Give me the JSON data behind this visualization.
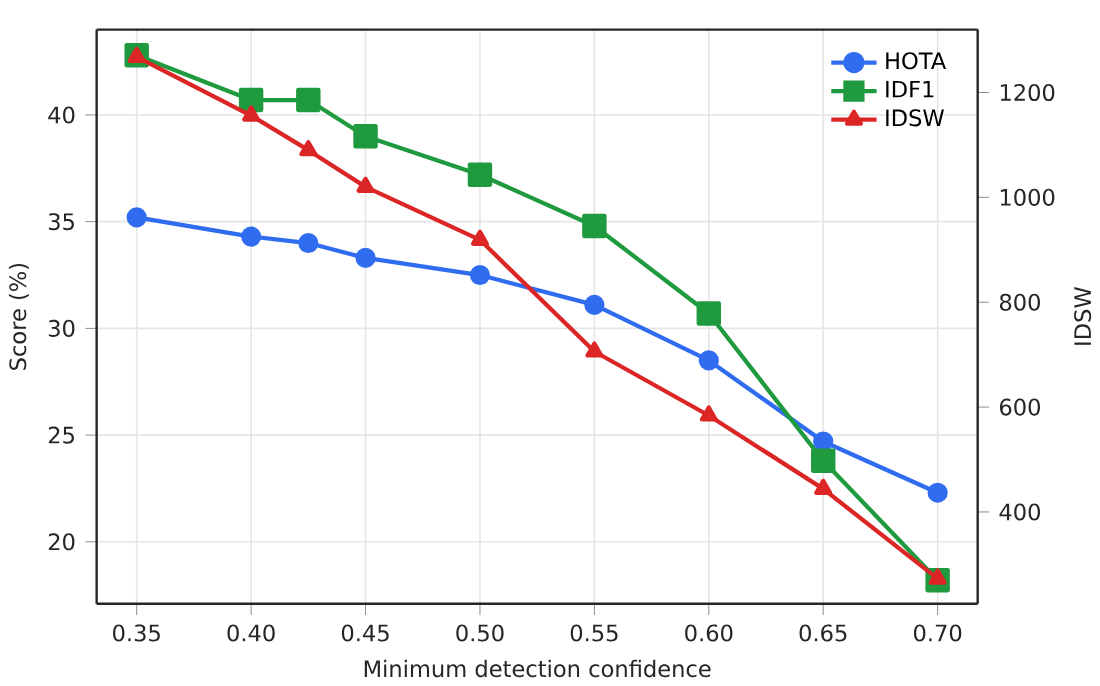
{
  "chart_data": {
    "type": "line",
    "xlabel": "Minimum detection confidence",
    "ylabel": "Score (%)",
    "y2label": "IDSW",
    "x": [
      0.35,
      0.4,
      0.425,
      0.45,
      0.5,
      0.55,
      0.6,
      0.65,
      0.7
    ],
    "series": [
      {
        "name": "HOTA",
        "color": "#2f6cf0",
        "marker": "circle",
        "values": [
          35.2,
          34.3,
          34.0,
          33.3,
          32.5,
          31.1,
          28.5,
          24.7,
          22.3
        ]
      },
      {
        "name": "IDF1",
        "color": "#1f9a3e",
        "marker": "square",
        "values": [
          42.8,
          40.7,
          40.7,
          39.0,
          37.2,
          34.8,
          30.7,
          23.8,
          18.2
        ]
      },
      {
        "name": "IDSW",
        "color": "#dc2626",
        "marker": "triangle",
        "axis": "y2",
        "values": [
          1268,
          1156,
          1090,
          1020,
          919,
          706,
          584,
          444,
          273
        ]
      }
    ],
    "xlim": [
      0.3325,
      0.7175
    ],
    "ylim": [
      17.1,
      44.0
    ],
    "y2lim": [
      225,
      1320
    ],
    "xticks": [
      {
        "value": 0.35,
        "label": "0.35"
      },
      {
        "value": 0.4,
        "label": "0.40"
      },
      {
        "value": 0.45,
        "label": "0.45"
      },
      {
        "value": 0.5,
        "label": "0.50"
      },
      {
        "value": 0.55,
        "label": "0.55"
      },
      {
        "value": 0.6,
        "label": "0.60"
      },
      {
        "value": 0.65,
        "label": "0.65"
      },
      {
        "value": 0.7,
        "label": "0.70"
      }
    ],
    "yticks": [
      20,
      25,
      30,
      35,
      40
    ],
    "y2ticks": [
      400,
      600,
      800,
      1000,
      1200
    ],
    "grid": true,
    "legend": "top right",
    "line_style": "solid"
  }
}
